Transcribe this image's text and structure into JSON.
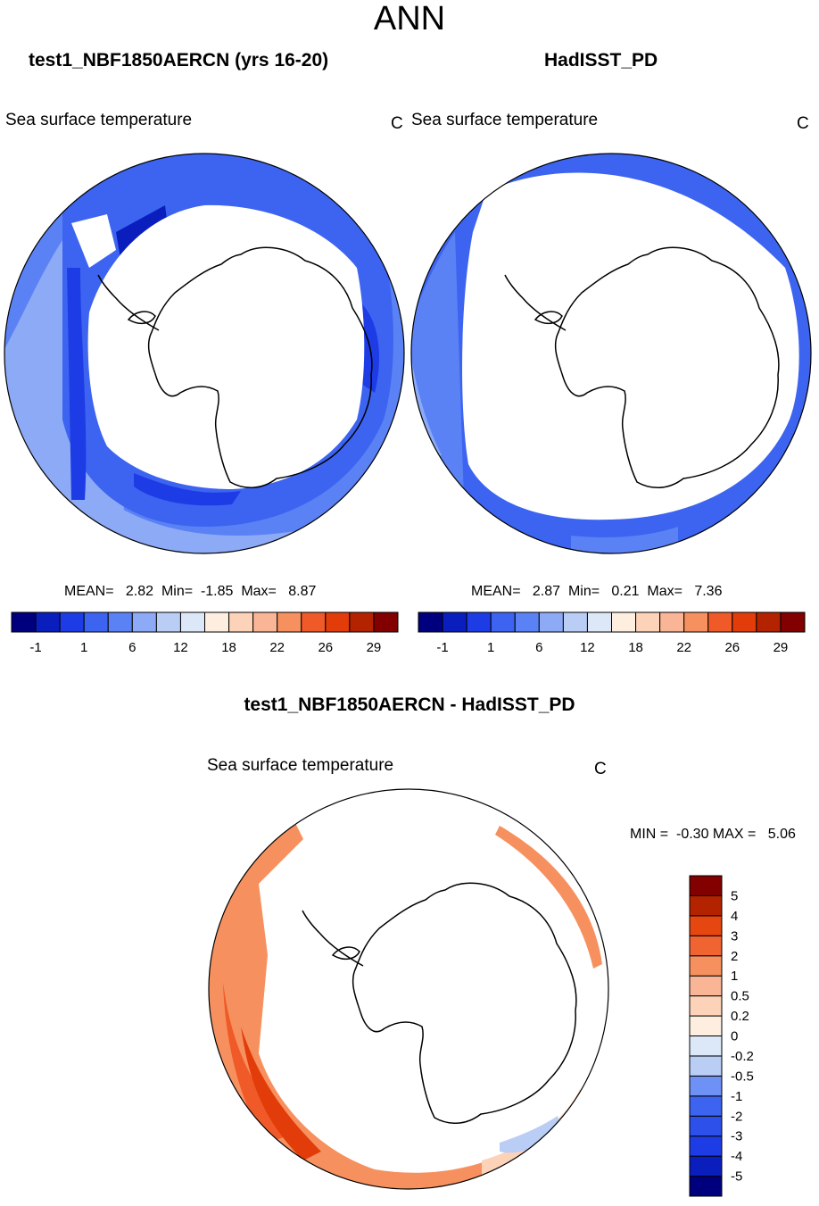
{
  "title": "ANN",
  "panels": [
    {
      "title": "test1_NBF1850AERCN (yrs 16-20)",
      "variable": "Sea surface temperature",
      "units": "C",
      "stats": "MEAN=   2.82  Min=  -1.85  Max=   8.87"
    },
    {
      "title": "HadISST_PD",
      "variable": "Sea surface temperature",
      "units": "C",
      "stats": "MEAN=   2.87  Min=   0.21  Max=   7.36"
    }
  ],
  "shared_colorbar": {
    "colors": [
      "#00007f",
      "#0a1ebe",
      "#1e3ce6",
      "#3c64f0",
      "#5a82f5",
      "#8caaf5",
      "#b9cdf5",
      "#dce8f8",
      "#fdeee0",
      "#fcd2b9",
      "#fab496",
      "#f6915f",
      "#f05a28",
      "#e23c0a",
      "#b42300",
      "#820000"
    ],
    "tick_labels": [
      "-1",
      "1",
      "6",
      "12",
      "18",
      "22",
      "26",
      "29"
    ]
  },
  "diff_panel": {
    "title": "test1_NBF1850AERCN - HadISST_PD",
    "variable": "Sea surface temperature",
    "units": "C",
    "stats": "MIN =  -0.30 MAX =   5.06"
  },
  "diff_colorbar": {
    "colors": [
      "#00007f",
      "#0a1ebe",
      "#1e3ce6",
      "#2d50eb",
      "#3c64f0",
      "#6e91f5",
      "#b9cdf5",
      "#dce8f8",
      "#fdeee0",
      "#fcd2b9",
      "#fab496",
      "#f6915f",
      "#f06432",
      "#e6460f",
      "#b42300",
      "#820000"
    ],
    "tick_labels": [
      "-5",
      "-4",
      "-3",
      "-2",
      "-1",
      "-0.5",
      "-0.2",
      "0",
      "0.2",
      "0.5",
      "1",
      "2",
      "3",
      "4",
      "5"
    ]
  }
}
